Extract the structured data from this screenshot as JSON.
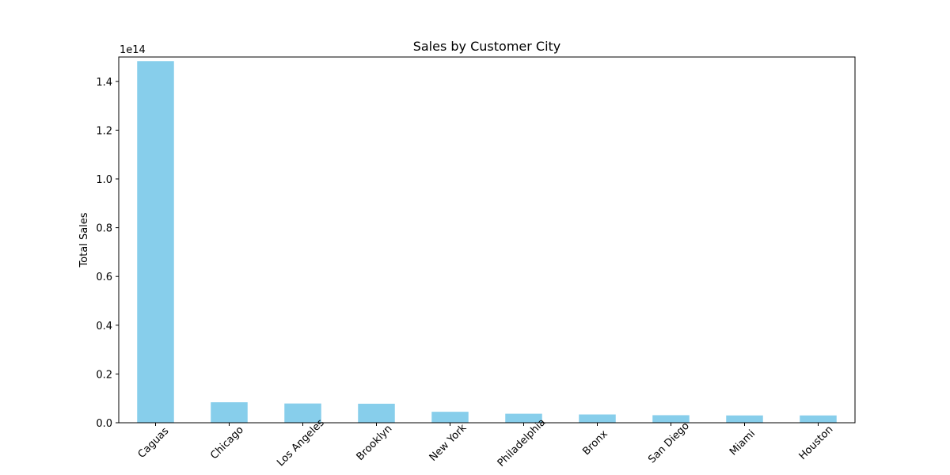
{
  "chart_data": {
    "type": "bar",
    "title": "Sales by Customer City",
    "xlabel": "",
    "ylabel": "Total Sales",
    "y_offset_label": "1e14",
    "y_scale_exponent": 14,
    "categories": [
      "Caguas",
      "Chicago",
      "Los Angeles",
      "Brooklyn",
      "New York",
      "Philadelphia",
      "Bronx",
      "San Diego",
      "Miami",
      "Houston"
    ],
    "values": [
      148300000000000.0,
      8400000000000.0,
      7900000000000.0,
      7800000000000.0,
      4500000000000.0,
      3700000000000.0,
      3400000000000.0,
      3100000000000.0,
      3000000000000.0,
      3000000000000.0
    ],
    "ylim": [
      0,
      150000000000000.0
    ],
    "yticks": [
      0,
      20000000000000.0,
      40000000000000.0,
      60000000000000.0,
      80000000000000.0,
      100000000000000.0,
      120000000000000.0,
      140000000000000.0
    ],
    "ytick_labels": [
      "0.0",
      "0.2",
      "0.4",
      "0.6",
      "0.8",
      "1.0",
      "1.2",
      "1.4"
    ],
    "bar_color": "#87ceeb",
    "grid": false,
    "xtick_rotation": 45
  }
}
